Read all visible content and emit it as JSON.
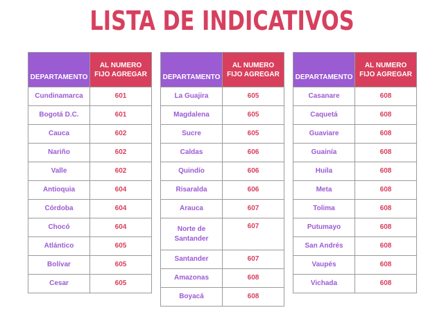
{
  "title": "LISTA DE INDICATIVOS",
  "header_dep": "DEPARTAMENTO",
  "header_num": "AL NUMERO FIJO AGREGAR",
  "tables": [
    [
      {
        "dep": "Cundinamarca",
        "num": "601"
      },
      {
        "dep": "Bogotá D.C.",
        "num": "601"
      },
      {
        "dep": "Cauca",
        "num": "602"
      },
      {
        "dep": "Nariño",
        "num": "602"
      },
      {
        "dep": "Valle",
        "num": "602"
      },
      {
        "dep": "Antioquia",
        "num": "604"
      },
      {
        "dep": "Córdoba",
        "num": "604"
      },
      {
        "dep": "Chocó",
        "num": "604"
      },
      {
        "dep": "Atlántico",
        "num": "605"
      },
      {
        "dep": "Bolívar",
        "num": "605"
      },
      {
        "dep": "Cesar",
        "num": "605"
      }
    ],
    [
      {
        "dep": "La Guajira",
        "num": "605"
      },
      {
        "dep": "Magdalena",
        "num": "605"
      },
      {
        "dep": "Sucre",
        "num": "605"
      },
      {
        "dep": "Caldas",
        "num": "606"
      },
      {
        "dep": "Quindío",
        "num": "606"
      },
      {
        "dep": "Risaralda",
        "num": "606"
      },
      {
        "dep": "Arauca",
        "num": "607"
      },
      {
        "dep": "Norte de Santander",
        "num": "607",
        "tall": true
      },
      {
        "dep": "Santander",
        "num": "607"
      },
      {
        "dep": "Amazonas",
        "num": "608"
      },
      {
        "dep": "Boyacá",
        "num": "608"
      }
    ],
    [
      {
        "dep": "Casanare",
        "num": "608"
      },
      {
        "dep": "Caquetá",
        "num": "608"
      },
      {
        "dep": "Guaviare",
        "num": "608"
      },
      {
        "dep": "Guainía",
        "num": "608"
      },
      {
        "dep": "Huila",
        "num": "608"
      },
      {
        "dep": "Meta",
        "num": "608"
      },
      {
        "dep": "Tolima",
        "num": "608"
      },
      {
        "dep": "Putumayo",
        "num": "608"
      },
      {
        "dep": "San Andrés",
        "num": "608"
      },
      {
        "dep": "Vaupés",
        "num": "608"
      },
      {
        "dep": "Vichada",
        "num": "608"
      }
    ]
  ]
}
